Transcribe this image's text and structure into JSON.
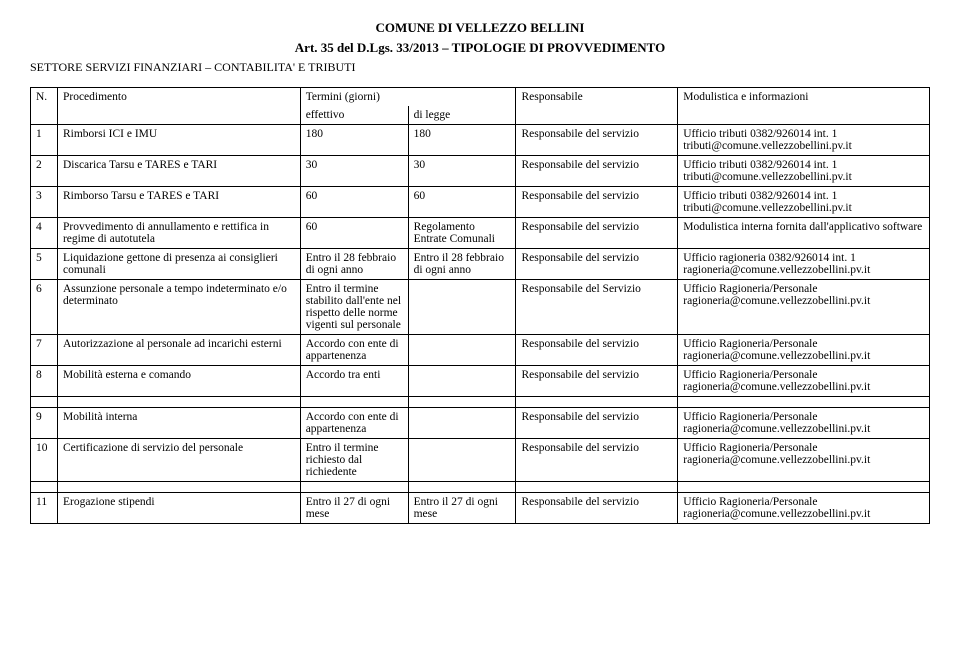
{
  "header": {
    "line1": "COMUNE DI VELLEZZO BELLINI",
    "line2": "Art. 35 del D.Lgs. 33/2013 – TIPOLOGIE DI PROVVEDIMENTO",
    "sector": "SETTORE SERVIZI FINANZIARI – CONTABILITA' E TRIBUTI"
  },
  "columns": {
    "n": "N.",
    "proc": "Procedimento",
    "term": "Termini (giorni)",
    "term_eff": "effettivo",
    "term_legge": "di legge",
    "resp": "Responsabile",
    "mod": "Modulistica e informazioni"
  },
  "rows": [
    {
      "n": "1",
      "proc": "Rimborsi ICI e IMU",
      "t1": "180",
      "t2": "180",
      "resp": "Responsabile del servizio",
      "mod": "Ufficio tributi 0382/926014 int. 1 tributi@comune.vellezzobellini.pv.it"
    },
    {
      "n": "2",
      "proc": "Discarica Tarsu e TARES e TARI",
      "t1": "30",
      "t2": "30",
      "resp": "Responsabile del servizio",
      "mod": "Ufficio tributi 0382/926014 int. 1 tributi@comune.vellezzobellini.pv.it"
    },
    {
      "n": "3",
      "proc": "Rimborso Tarsu e TARES e TARI",
      "t1": "60",
      "t2": "60",
      "resp": "Responsabile del servizio",
      "mod": "Ufficio tributi 0382/926014 int. 1 tributi@comune.vellezzobellini.pv.it"
    },
    {
      "n": "4",
      "proc": "Provvedimento di annullamento e rettifica in regime di autotutela",
      "t1": "60",
      "t2": "Regolamento Entrate Comunali",
      "resp": "Responsabile del servizio",
      "mod": "Modulistica interna fornita dall'applicativo software"
    },
    {
      "n": "5",
      "proc": "Liquidazione gettone di presenza ai consiglieri comunali",
      "t1": "Entro il 28 febbraio di ogni anno",
      "t2": "Entro il 28 febbraio di ogni anno",
      "resp": "Responsabile del servizio",
      "mod": "Ufficio ragioneria 0382/926014 int. 1 ragioneria@comune.vellezzobellini.pv.it"
    },
    {
      "n": "6",
      "proc": "Assunzione personale a tempo indeterminato e/o determinato",
      "t1": "Entro il termine stabilito dall'ente nel rispetto delle norme vigenti sul personale",
      "t2": "",
      "resp": "Responsabile del Servizio",
      "mod": "Ufficio Ragioneria/Personale ragioneria@comune.vellezzobellini.pv.it"
    },
    {
      "n": "7",
      "proc": "Autorizzazione al personale ad incarichi esterni",
      "t1": "Accordo con ente di appartenenza",
      "t2": "",
      "resp": "Responsabile del servizio",
      "mod": "Ufficio Ragioneria/Personale ragioneria@comune.vellezzobellini.pv.it"
    },
    {
      "n": "8",
      "proc": "Mobilità esterna e comando",
      "t1": "Accordo tra enti",
      "t2": "",
      "resp": "Responsabile del servizio",
      "mod": "Ufficio Ragioneria/Personale ragioneria@comune.vellezzobellini.pv.it"
    }
  ],
  "rows2": [
    {
      "n": "9",
      "proc": "Mobilità interna",
      "t1": "Accordo con ente di appartenenza",
      "t2": "",
      "resp": "Responsabile del servizio",
      "mod": "Ufficio Ragioneria/Personale ragioneria@comune.vellezzobellini.pv.it"
    },
    {
      "n": "10",
      "proc": "Certificazione di servizio del personale",
      "t1": "Entro il termine richiesto dal richiedente",
      "t2": "",
      "resp": "Responsabile del servizio",
      "mod": "Ufficio Ragioneria/Personale ragioneria@comune.vellezzobellini.pv.it"
    }
  ],
  "rows3": [
    {
      "n": "11",
      "proc": "Erogazione stipendi",
      "t1": "Entro il 27 di ogni mese",
      "t2": "Entro il 27 di ogni mese",
      "resp": "Responsabile del servizio",
      "mod": "Ufficio Ragioneria/Personale ragioneria@comune.vellezzobellini.pv.it"
    }
  ]
}
